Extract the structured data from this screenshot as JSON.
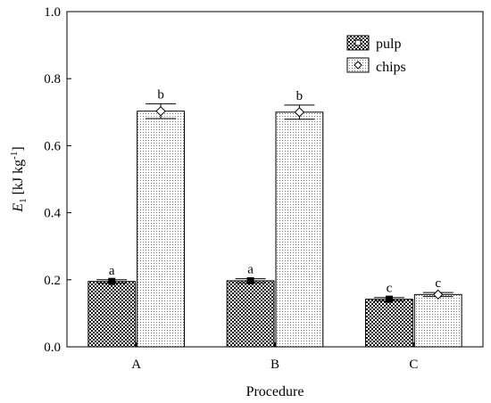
{
  "chart_data": {
    "type": "bar",
    "xlabel": "Procedure",
    "ylabel_main": "E",
    "ylabel_sub": "1",
    "ylabel_unit_pre": " [kJ kg",
    "ylabel_unit_sup": "-1",
    "ylabel_unit_post": "]",
    "ylim": [
      0.0,
      1.0
    ],
    "yticks": [
      "0.0",
      "0.2",
      "0.4",
      "0.6",
      "0.8",
      "1.0"
    ],
    "categories": [
      "A",
      "B",
      "C"
    ],
    "legend_position": "top-right",
    "series": [
      {
        "name": "pulp",
        "values": [
          0.195,
          0.197,
          0.142
        ],
        "errors": [
          0.005,
          0.006,
          0.005
        ],
        "labels": [
          "a",
          "a",
          "c"
        ],
        "marker": "square",
        "fill": "dark-checker"
      },
      {
        "name": "chips",
        "values": [
          0.703,
          0.7,
          0.156
        ],
        "errors": [
          0.022,
          0.021,
          0.006
        ],
        "labels": [
          "b",
          "b",
          "c"
        ],
        "marker": "diamond",
        "fill": "light-dotted"
      }
    ]
  }
}
